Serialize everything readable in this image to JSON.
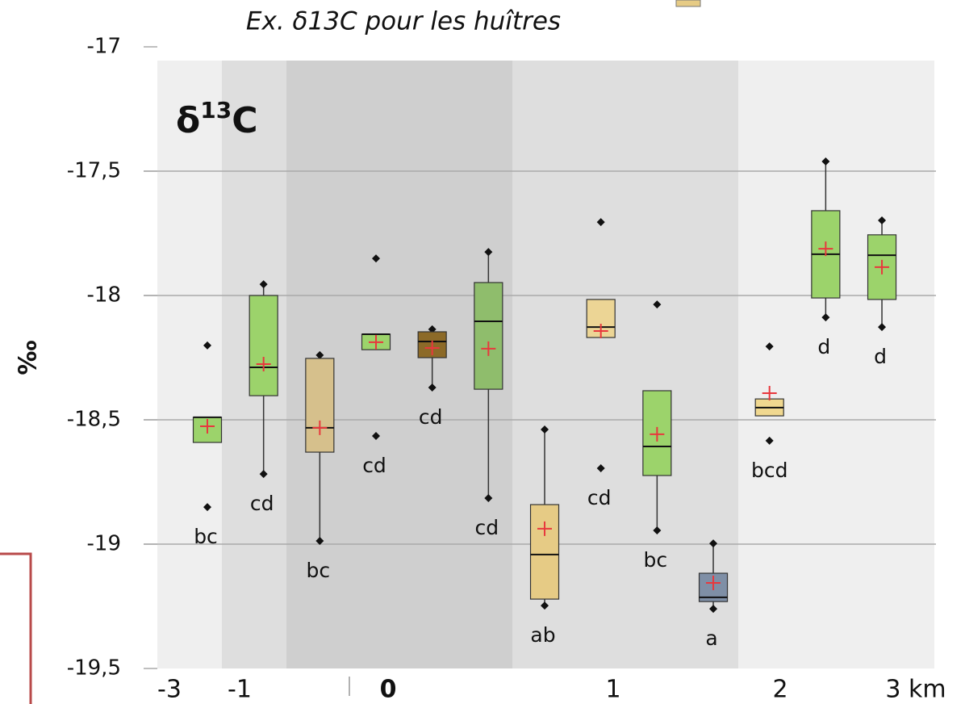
{
  "chart_data": {
    "type": "box",
    "title": "Ex. δ13C pour les huîtres",
    "panel_label": [
      "δ",
      "13",
      "C"
    ],
    "y_label": "‰",
    "x_labels": [
      "-3",
      "-1",
      "0",
      "1",
      "2",
      "3 km"
    ],
    "ylim": [
      -19.5,
      -17
    ],
    "yticks": [
      -17,
      {
        "value": -17.5,
        "label": "-17,5"
      },
      -18,
      {
        "value": -18.5,
        "label": "-18,5"
      },
      -19,
      {
        "value": -19.5,
        "label": "-19,5"
      }
    ],
    "grid": true,
    "mean_color": "#e8383d",
    "boxes": [
      {
        "color": "#9cd36b",
        "q1": -18.591,
        "median": -18.49,
        "q3": -18.49,
        "mean": -18.526,
        "outliers": [
          -18.201,
          -18.851
        ],
        "letters": "bc"
      },
      {
        "color": "#9cd36b",
        "min": -18.718,
        "q1": -18.403,
        "median": -18.289,
        "q3": -18.0,
        "max": -17.955,
        "mean": -18.276,
        "letters": "cd"
      },
      {
        "color": "#d6c08c",
        "min": -18.987,
        "q1": -18.63,
        "median": -18.532,
        "q3": -18.253,
        "max": -18.24,
        "mean": -18.532,
        "letters": "bc"
      },
      {
        "color": "#9cd36b",
        "q1": -18.218,
        "median": -18.156,
        "q3": -18.156,
        "mean": -18.188,
        "outliers": [
          -17.851,
          -18.565
        ],
        "letters": "cd"
      },
      {
        "color": "#8c6a28",
        "min": -18.37,
        "q1": -18.25,
        "median": -18.185,
        "q3": -18.146,
        "max": -18.136,
        "mean": -18.211,
        "letters": "cd"
      },
      {
        "color": "#8fbd6c",
        "min": -18.815,
        "q1": -18.377,
        "median": -18.104,
        "q3": -17.948,
        "max": -17.825,
        "mean": -18.214,
        "letters": "cd"
      },
      {
        "color": "#e6cb85",
        "min": -19.247,
        "q1": -19.221,
        "median": -19.042,
        "q3": -18.841,
        "max": -18.539,
        "mean": -18.938,
        "letters": "ab"
      },
      {
        "color": "#ecd595",
        "q1": -18.169,
        "median": -18.127,
        "q3": -18.016,
        "mean": -18.143,
        "outliers": [
          -17.705,
          -18.695
        ],
        "letters": "cd"
      },
      {
        "color": "#9cd36b",
        "min": -18.945,
        "q1": -18.724,
        "median": -18.607,
        "q3": -18.383,
        "mean": -18.558,
        "outliers": [
          -18.036
        ],
        "letters": "bc"
      },
      {
        "color": "#7f8fa6",
        "min": -19.26,
        "q1": -19.231,
        "median": -19.214,
        "q3": -19.117,
        "max": -18.997,
        "mean": -19.156,
        "letters": "a"
      },
      {
        "color": "#f0d890",
        "q1": -18.484,
        "median": -18.451,
        "q3": -18.416,
        "mean": -18.393,
        "outliers": [
          -18.205,
          -18.584
        ],
        "letters": "bcd"
      },
      {
        "color": "#9cd36b",
        "min": -18.088,
        "q1": -18.01,
        "median": -17.834,
        "q3": -17.659,
        "max": -17.461,
        "mean": -17.812,
        "letters": "d"
      },
      {
        "color": "#9cd36b",
        "min": -18.127,
        "q1": -18.016,
        "median": -17.838,
        "q3": -17.756,
        "max": -17.698,
        "mean": -17.886,
        "letters": "d"
      }
    ]
  }
}
